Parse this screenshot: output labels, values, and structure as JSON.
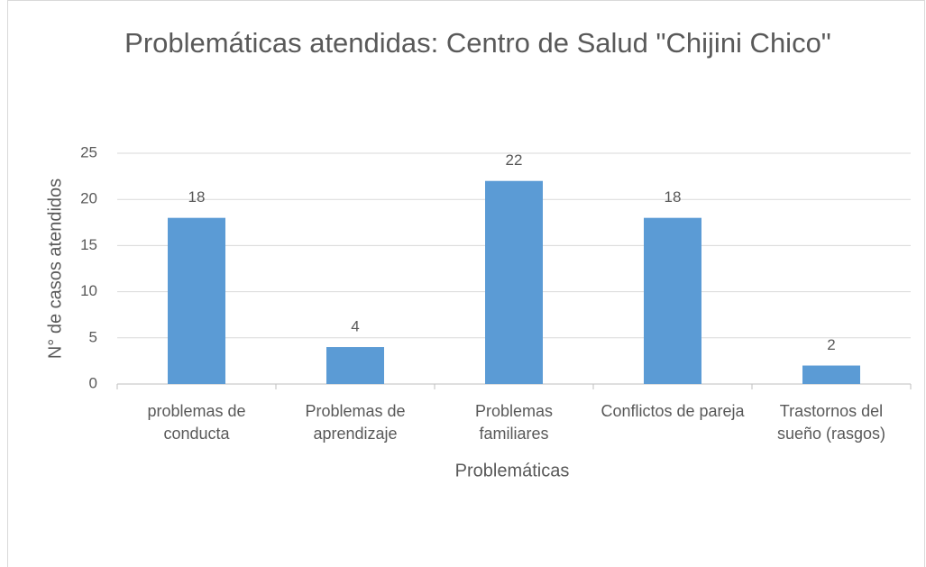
{
  "chart_data": {
    "type": "bar",
    "title": "Problemáticas atendidas: Centro de Salud \"Chijini Chico\"",
    "x_label": "Problemáticas",
    "y_label": "N° de casos atendidos",
    "categories": [
      "problemas de conducta",
      "Problemas de aprendizaje",
      "Problemas familiares",
      "Conflictos de pareja",
      "Trastornos del sueño (rasgos)"
    ],
    "values": [
      18,
      4,
      22,
      18,
      2
    ],
    "color": "#5b9bd5",
    "ylim": [
      0,
      25
    ],
    "yticks": [
      0,
      5,
      10,
      15,
      20,
      25
    ],
    "grid": true
  }
}
